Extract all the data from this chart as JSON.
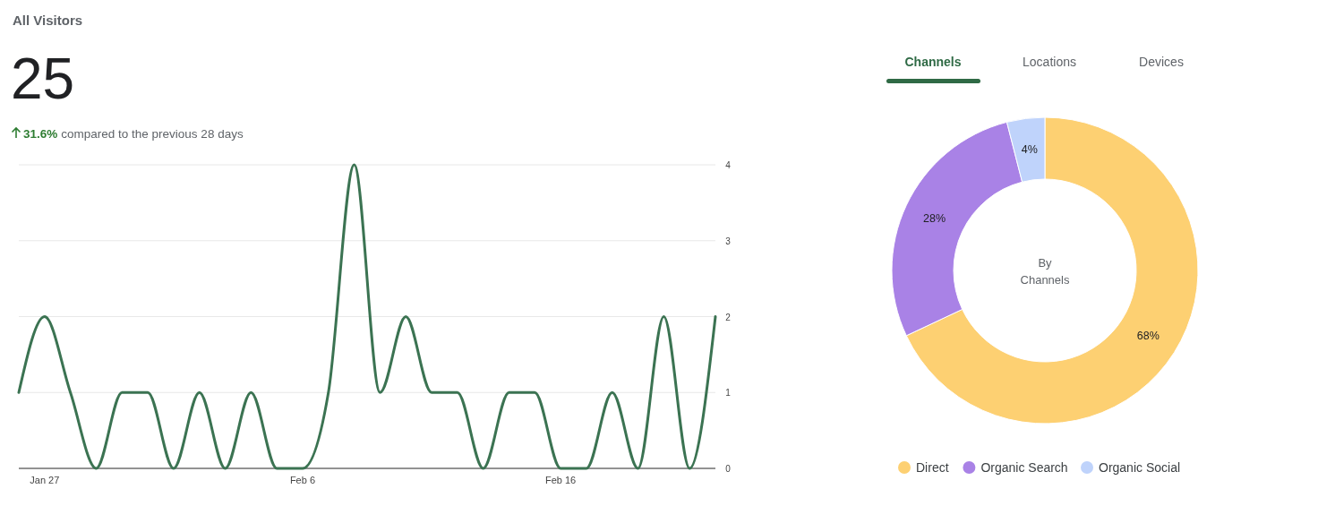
{
  "chart_data": [
    {
      "type": "other",
      "title": "All Visitors",
      "annotations": [
        "25",
        "31.6%",
        "compared to the previous 28 days"
      ]
    },
    {
      "type": "line",
      "x": [
        "--01-26",
        "--01-27",
        "--01-28",
        "--01-29",
        "--01-30",
        "--01-31",
        "--02-01",
        "--02-02",
        "--02-03",
        "--02-04",
        "--02-05",
        "--02-06",
        "--02-07",
        "--02-08",
        "--02-09",
        "--02-10",
        "--02-11",
        "--02-12",
        "--02-13",
        "--02-14",
        "--02-15",
        "--02-16",
        "--02-17",
        "--02-18",
        "--02-19",
        "--02-20",
        "--02-21",
        "--02-22"
      ],
      "series": [
        {
          "color": "#3b7352",
          "values": [
            1,
            2,
            1,
            0,
            1,
            1,
            0,
            1,
            0,
            1,
            0,
            0,
            1,
            4,
            1,
            2,
            1,
            1,
            0,
            1,
            1,
            0,
            0,
            1,
            0,
            2,
            0,
            2
          ]
        }
      ],
      "xlim": [
        "--01-26",
        "--02-22"
      ],
      "xticks": [
        {
          "value": "--01-27",
          "label": "Jan 27"
        },
        {
          "value": "--02-06",
          "label": "Feb 6"
        },
        {
          "value": "--02-16",
          "label": "Feb 16"
        }
      ],
      "ylim": [
        0,
        4
      ],
      "yticks": [
        0,
        1,
        2,
        3,
        4
      ],
      "grid": "y",
      "marker": "none",
      "line_style": "solid"
    },
    {
      "type": "donut",
      "categories": [
        "Direct",
        "Organic Search",
        "Organic Social"
      ],
      "values": [
        68,
        28,
        4
      ],
      "colors": [
        "#fdd072",
        "#a982e6",
        "#bfd3fb"
      ],
      "value_labels": [
        "68%",
        "28%",
        "4%"
      ],
      "legend": "bottom",
      "annotations": [
        "Channels",
        "Locations",
        "Devices",
        "By Channels"
      ]
    }
  ]
}
